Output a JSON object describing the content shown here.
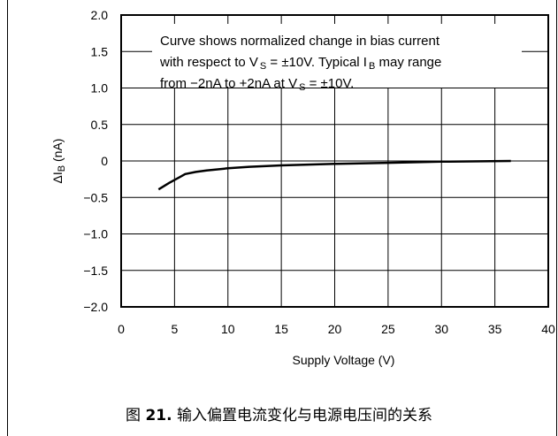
{
  "chart_data": {
    "type": "line",
    "xlabel": "Supply Voltage (V)",
    "ylabel_parts": [
      "ΔI",
      "B",
      " (nA)"
    ],
    "xlim": [
      0,
      40
    ],
    "ylim": [
      -2.0,
      2.0
    ],
    "x_ticks": [
      0,
      5,
      10,
      15,
      20,
      25,
      30,
      35,
      40
    ],
    "x_tick_labels": [
      "0",
      "5",
      "10",
      "15",
      "20",
      "25",
      "30",
      "35",
      "40"
    ],
    "y_ticks": [
      2.0,
      1.5,
      1.0,
      0.5,
      0,
      -0.5,
      -1.0,
      -1.5,
      -2.0
    ],
    "y_tick_labels": [
      "2.0",
      "1.5",
      "1.0",
      "0.5",
      "0",
      "−0.5",
      "−1.0",
      "−1.5",
      "−2.0"
    ],
    "grid": true,
    "series": [
      {
        "x": [
          3.5,
          4.5,
          5.5,
          6.0,
          7.0,
          8.0,
          10.0,
          12.0,
          15.0,
          20.0,
          25.0,
          30.0,
          36.5
        ],
        "y": [
          -0.39,
          -0.3,
          -0.22,
          -0.18,
          -0.15,
          -0.13,
          -0.1,
          -0.08,
          -0.06,
          -0.04,
          -0.025,
          -0.01,
          0.0
        ],
        "color": "#000000"
      }
    ],
    "annotation": [
      [
        {
          "t": "Curve shows normalized change in bias current"
        }
      ],
      [
        {
          "t": "with respect to V"
        },
        {
          "t": "S",
          "sub": true
        },
        {
          "t": " = ±10V. Typical I"
        },
        {
          "t": "B",
          "sub": true
        },
        {
          "t": " may range"
        }
      ],
      [
        {
          "t": "from −2nA to +2nA at V"
        },
        {
          "t": "S",
          "sub": true
        },
        {
          "t": " = ±10V."
        }
      ]
    ]
  },
  "caption": {
    "prefix": "图 ",
    "number": "21.",
    "text": " 输入偏置电流变化与电源电压间的关系"
  }
}
